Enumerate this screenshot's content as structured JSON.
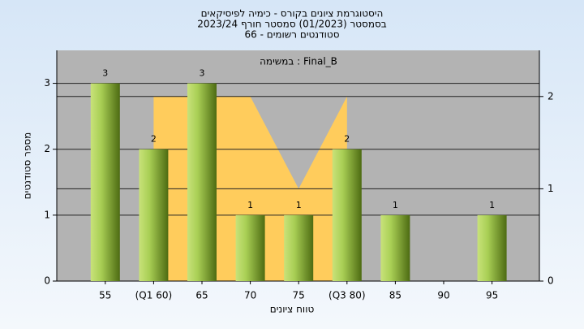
{
  "chart_data": {
    "type": "bar",
    "title": "היסטוגרמת ציונים בקורס - כימיה לפיסיקאים",
    "subtitle": "בסמסטר  (01/2023)  סמסטר חורף 2023/24",
    "subtitle2": "סטודנטים רשומים - 66",
    "annotation": "במשימה : Final_B",
    "xlabel": "טווח ציונים",
    "ylabel": "מספר סטודנטים",
    "categories": [
      "55",
      "(Q1 60)",
      "65",
      "70",
      "75",
      "(Q3 80)",
      "85",
      "90",
      "95"
    ],
    "values": [
      3,
      2,
      3,
      1,
      1,
      2,
      1,
      0,
      1
    ],
    "color": "#8fb83a",
    "ylim": [
      0,
      3.5
    ],
    "yticks": [
      0,
      1,
      2,
      3
    ],
    "y2lim": [
      0,
      2.5
    ],
    "y2ticks": [
      0,
      1,
      2
    ],
    "area": {
      "axis": "y2",
      "color": "#ffcc5c",
      "values": [
        null,
        2,
        2,
        2,
        1,
        2,
        null,
        null,
        null
      ]
    },
    "grid": true
  }
}
